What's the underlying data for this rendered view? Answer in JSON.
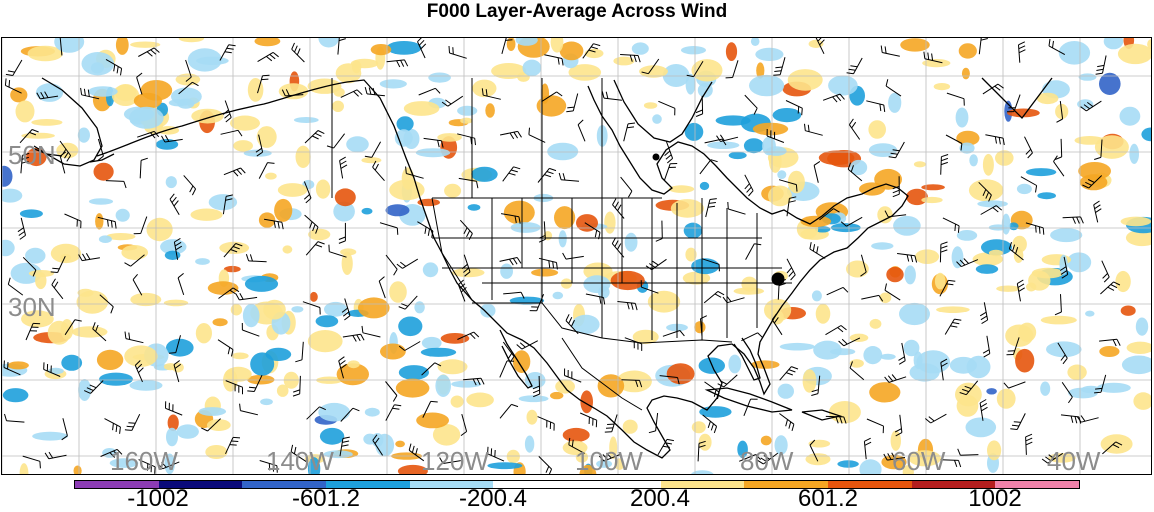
{
  "title": "F000 Layer-Average Across Wind",
  "lat_labels": [
    "50N",
    "30N"
  ],
  "lon_labels": [
    "160W",
    "140W",
    "120W",
    "100W",
    "80W",
    "60W",
    "40W"
  ],
  "colorbar": {
    "colors": [
      "#8c3cb4",
      "#0a0a7a",
      "#3264c8",
      "#1ea0dc",
      "#a6dcf5",
      "#ffffff",
      "#ffffff",
      "#fde48c",
      "#f5a623",
      "#e6550d",
      "#b41e1e",
      "#f082aa"
    ],
    "labels": [
      "-1002",
      "-601.2",
      "-200.4",
      "200.4",
      "601.2",
      "1002"
    ]
  },
  "markers": {
    "station_color": "#000000"
  }
}
